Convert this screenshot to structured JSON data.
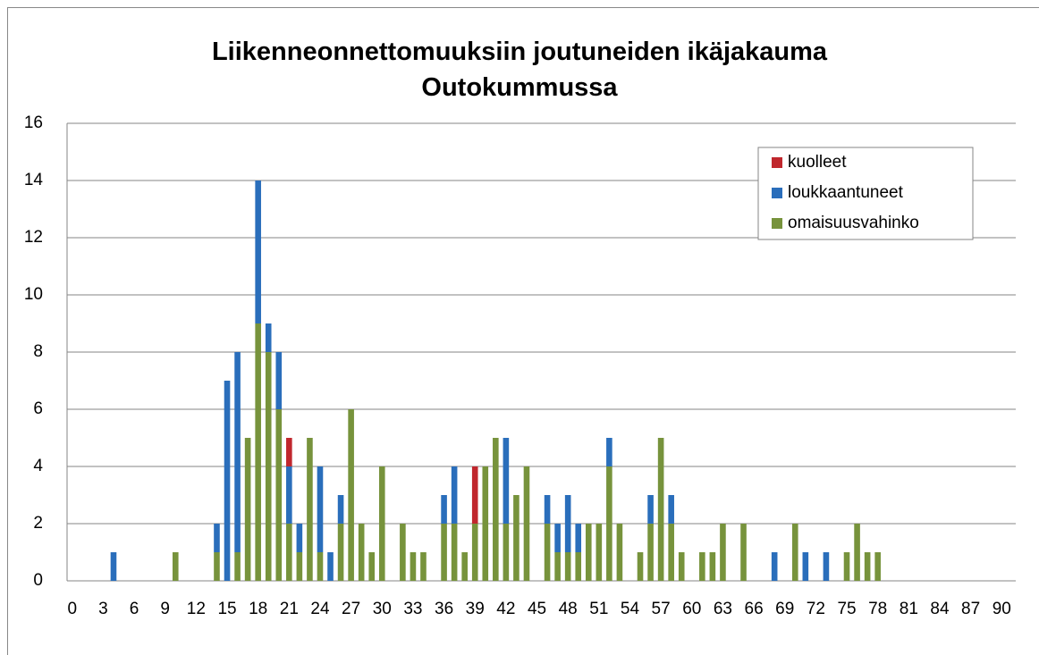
{
  "chart_data": {
    "type": "stacked_bar",
    "title": "Liikenneonnettomuuksiin joutuneiden ikäjakauma Outokummussa",
    "categories": [
      "0",
      null,
      null,
      "3",
      null,
      null,
      "6",
      null,
      null,
      "9",
      null,
      null,
      "12",
      null,
      null,
      "15",
      null,
      null,
      "18",
      null,
      null,
      "21",
      null,
      null,
      "24",
      null,
      null,
      "27",
      null,
      null,
      "30",
      null,
      null,
      "33",
      null,
      null,
      "36",
      null,
      null,
      "39",
      null,
      null,
      "42",
      null,
      null,
      "45",
      null,
      null,
      "48",
      null,
      null,
      "51",
      null,
      null,
      "54",
      null,
      null,
      "57",
      null,
      null,
      "60",
      null,
      null,
      "63",
      null,
      null,
      "66",
      null,
      null,
      "69",
      null,
      null,
      "72",
      null,
      null,
      "75",
      null,
      null,
      "78",
      null,
      null,
      "81",
      null,
      null,
      "84",
      null,
      null,
      "87",
      null,
      null,
      "90"
    ],
    "series": [
      {
        "name": "kuolleet",
        "color": "#c0272d",
        "values": [
          0,
          0,
          0,
          0,
          0,
          0,
          0,
          0,
          0,
          0,
          0,
          0,
          0,
          0,
          0,
          0,
          0,
          0,
          0,
          0,
          0,
          1,
          0,
          0,
          0,
          0,
          0,
          0,
          0,
          0,
          0,
          0,
          0,
          0,
          0,
          0,
          0,
          0,
          0,
          2,
          0,
          0,
          0,
          0,
          0,
          0,
          0,
          0,
          0,
          0,
          0,
          0,
          0,
          0,
          0,
          0,
          0,
          0,
          0,
          0,
          0,
          0,
          0,
          0,
          0,
          0,
          0,
          0,
          0,
          0,
          0,
          0,
          0,
          0,
          0,
          0,
          0,
          0,
          0,
          0,
          0,
          0,
          0,
          0,
          0,
          0,
          0,
          0,
          0,
          0,
          0
        ]
      },
      {
        "name": "loukkaantuneet",
        "color": "#2a6ebb",
        "values": [
          0,
          0,
          0,
          0,
          1,
          0,
          0,
          0,
          0,
          0,
          0,
          0,
          0,
          0,
          1,
          7,
          7,
          0,
          5,
          1,
          2,
          2,
          1,
          0,
          3,
          1,
          1,
          0,
          0,
          0,
          0,
          0,
          0,
          0,
          0,
          0,
          1,
          2,
          0,
          0,
          0,
          0,
          3,
          0,
          0,
          0,
          1,
          1,
          2,
          1,
          0,
          0,
          1,
          0,
          0,
          0,
          1,
          0,
          1,
          0,
          0,
          0,
          0,
          0,
          0,
          0,
          0,
          0,
          1,
          0,
          0,
          1,
          0,
          1,
          0,
          0,
          0,
          0,
          0,
          0,
          0,
          0,
          0,
          0,
          0,
          0,
          0,
          0,
          0,
          0,
          0
        ]
      },
      {
        "name": "omaisuusvahinko",
        "color": "#77933c",
        "values": [
          0,
          0,
          0,
          0,
          0,
          0,
          0,
          0,
          0,
          0,
          1,
          0,
          0,
          0,
          1,
          0,
          1,
          5,
          9,
          8,
          6,
          2,
          1,
          5,
          1,
          0,
          2,
          6,
          2,
          1,
          4,
          0,
          2,
          1,
          1,
          0,
          2,
          2,
          1,
          2,
          4,
          5,
          2,
          3,
          4,
          0,
          2,
          1,
          1,
          1,
          2,
          2,
          4,
          2,
          0,
          1,
          2,
          5,
          2,
          1,
          0,
          1,
          1,
          2,
          0,
          2,
          0,
          0,
          0,
          0,
          2,
          0,
          0,
          0,
          0,
          1,
          2,
          1,
          1,
          0,
          0,
          0,
          0,
          0,
          0,
          0,
          0,
          0,
          0,
          0,
          0
        ]
      }
    ],
    "ylim": [
      0,
      16
    ],
    "yticks": [
      0,
      2,
      4,
      6,
      8,
      10,
      12,
      14,
      16
    ],
    "grid": true,
    "legend": "upper right"
  }
}
